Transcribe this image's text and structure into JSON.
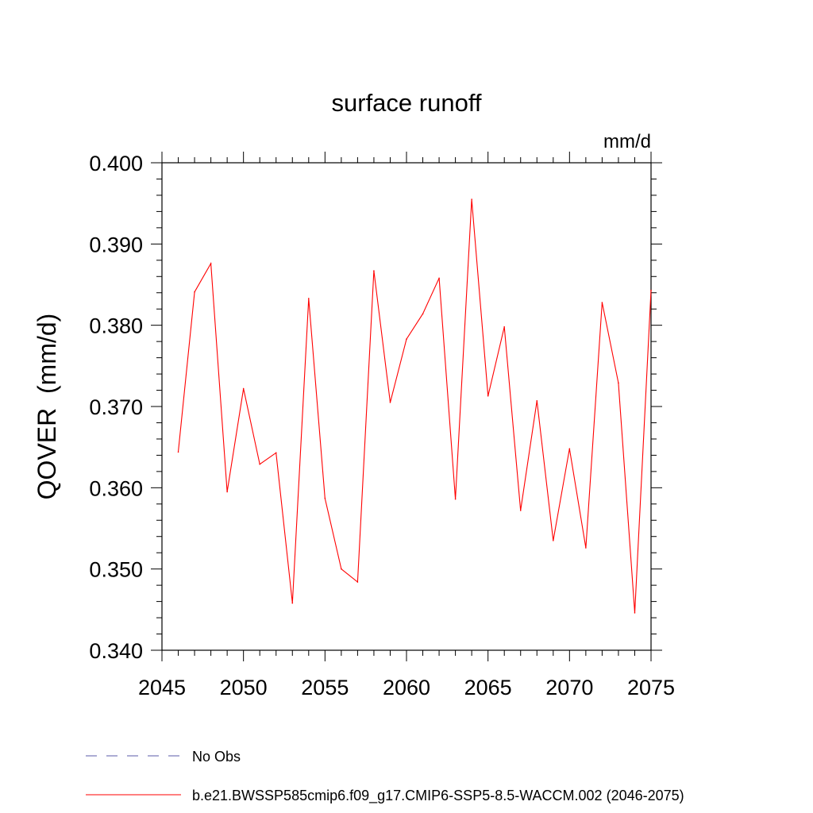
{
  "chart_data": {
    "type": "line",
    "title": "surface runoff",
    "units_label": "mm/d",
    "ylabel": "QOVER  (mm/d)",
    "xlabel": "",
    "xlim": [
      2045,
      2075
    ],
    "ylim": [
      0.34,
      0.4
    ],
    "x_ticks": [
      2045,
      2050,
      2055,
      2060,
      2065,
      2070,
      2075
    ],
    "x_tick_labels": [
      "2045",
      "2050",
      "2055",
      "2060",
      "2065",
      "2070",
      "2075"
    ],
    "y_ticks": [
      0.34,
      0.35,
      0.36,
      0.37,
      0.38,
      0.39,
      0.4
    ],
    "y_tick_labels": [
      "0.340",
      "0.350",
      "0.360",
      "0.370",
      "0.380",
      "0.390",
      "0.400"
    ],
    "grid": false,
    "legend_position": "bottom",
    "series": [
      {
        "name": "b.e21.BWSSP585cmip6.f09_g17.CMIP6-SSP5-8.5-WACCM.002 (2046-2075)",
        "color": "#ff0000",
        "style": "solid",
        "x": [
          2046,
          2047,
          2048,
          2049,
          2050,
          2051,
          2052,
          2053,
          2054,
          2055,
          2056,
          2057,
          2058,
          2059,
          2060,
          2061,
          2062,
          2063,
          2064,
          2065,
          2066,
          2067,
          2068,
          2069,
          2070,
          2071,
          2072,
          2073,
          2074,
          2075
        ],
        "values": [
          0.3644,
          0.3841,
          0.3876,
          0.3595,
          0.3722,
          0.3629,
          0.3643,
          0.3458,
          0.3833,
          0.3587,
          0.35,
          0.3484,
          0.3867,
          0.3705,
          0.3783,
          0.3814,
          0.3858,
          0.3586,
          0.3955,
          0.3713,
          0.3798,
          0.3572,
          0.3707,
          0.3535,
          0.3648,
          0.3526,
          0.3828,
          0.3729,
          0.3446,
          0.3843
        ]
      }
    ],
    "legend": [
      {
        "label": "No Obs",
        "color": "#5a5aa8",
        "style": "dashed"
      },
      {
        "label": "b.e21.BWSSP585cmip6.f09_g17.CMIP6-SSP5-8.5-WACCM.002 (2046-2075)",
        "color": "#ff0000",
        "style": "solid"
      }
    ]
  }
}
